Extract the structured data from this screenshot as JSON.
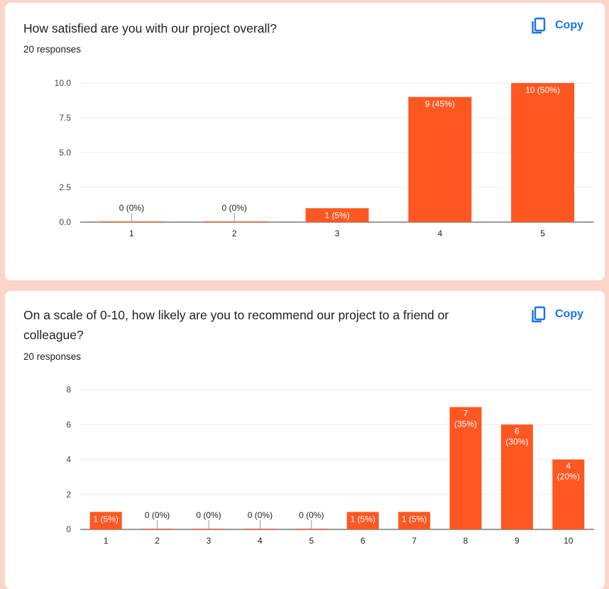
{
  "colors": {
    "bar": "#ff5722",
    "accent": "#1a73e8",
    "page_background": "#fbd5c8"
  },
  "questions": [
    {
      "title": "How satisfied are you with our project overall?",
      "responses": "20 responses",
      "copy_label": "Copy",
      "copy_icon": "copy-icon"
    },
    {
      "title": "On a scale of 0-10, how likely are you to recommend our project to a friend or colleague?",
      "responses": "20 responses",
      "copy_label": "Copy",
      "copy_icon": "copy-icon"
    }
  ],
  "chart_data": [
    {
      "type": "bar",
      "categories": [
        "1",
        "2",
        "3",
        "4",
        "5"
      ],
      "values": [
        0,
        0,
        1,
        9,
        10
      ],
      "data_labels": [
        "0 (0%)",
        "0 (0%)",
        "1 (5%)",
        "9 (45%)",
        "10 (50%)"
      ],
      "y_ticks": [
        "0.0",
        "2.5",
        "5.0",
        "7.5",
        "10.0"
      ],
      "ylim": [
        0,
        10
      ],
      "grid": true,
      "legend": "none"
    },
    {
      "type": "bar",
      "categories": [
        "1",
        "2",
        "3",
        "4",
        "5",
        "6",
        "7",
        "8",
        "9",
        "10"
      ],
      "values": [
        1,
        0,
        0,
        0,
        0,
        1,
        1,
        7,
        6,
        4
      ],
      "data_labels": [
        "1 (5%)",
        "0 (0%)",
        "0 (0%)",
        "0 (0%)",
        "0 (0%)",
        "1 (5%)",
        "1 (5%)",
        "7 (35%)",
        "6 (30%)",
        "4 (20%)"
      ],
      "y_ticks": [
        "0",
        "2",
        "4",
        "6",
        "8"
      ],
      "ylim": [
        0,
        8
      ],
      "grid": true,
      "legend": "none"
    }
  ]
}
